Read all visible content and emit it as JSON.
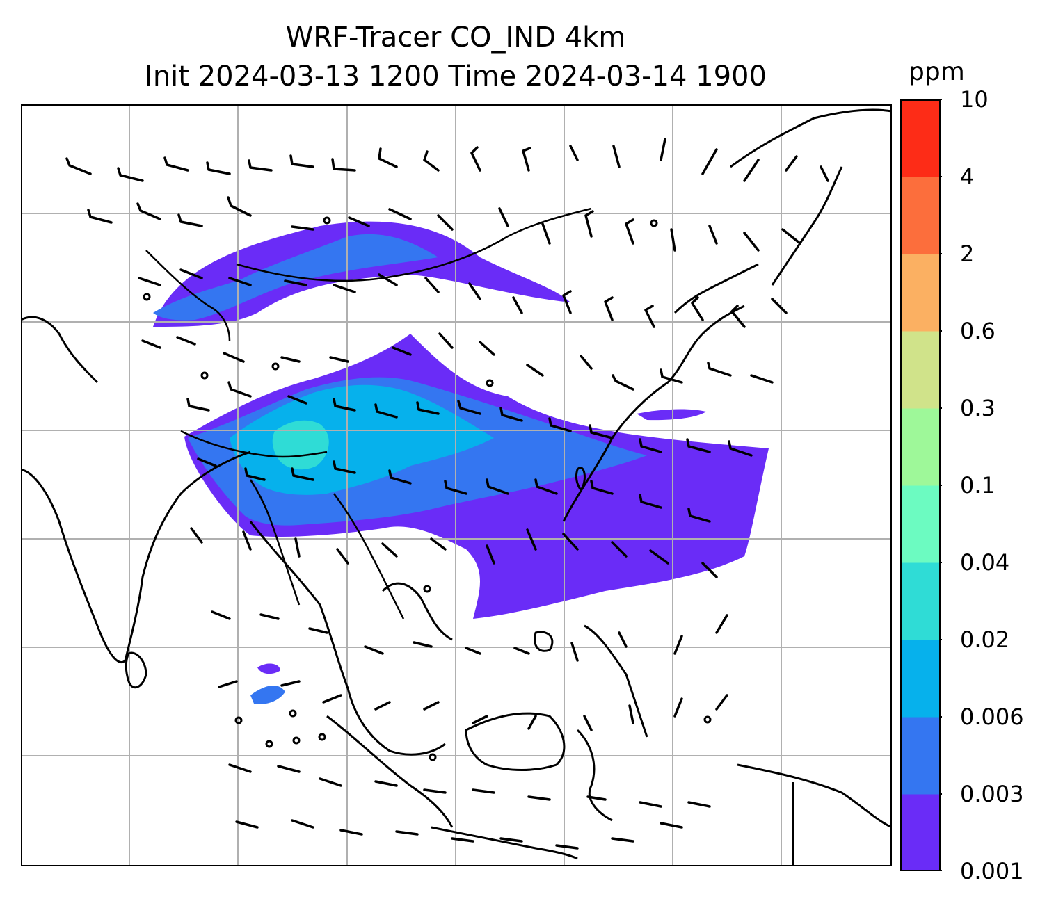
{
  "title": {
    "line1": "WRF-Tracer CO_IND 4km",
    "line2": "Init 2024-03-13 1200 Time 2024-03-14 1900"
  },
  "colorbar": {
    "unit": "ppm",
    "levels": [
      "0.001",
      "0.003",
      "0.006",
      "0.02",
      "0.04",
      "0.1",
      "0.3",
      "0.6",
      "2",
      "4",
      "10"
    ],
    "colors": [
      "#6a2cf7",
      "#3476f1",
      "#06b1ec",
      "#2fdcd6",
      "#6cfbc1",
      "#9ef899",
      "#d0e38a",
      "#fbb062",
      "#fc6e3c",
      "#fd2c17"
    ]
  },
  "map": {
    "features": [
      "coastlines",
      "country-borders",
      "lat-lon-gridlines",
      "wind-barbs",
      "co-tracer-plume"
    ]
  }
}
